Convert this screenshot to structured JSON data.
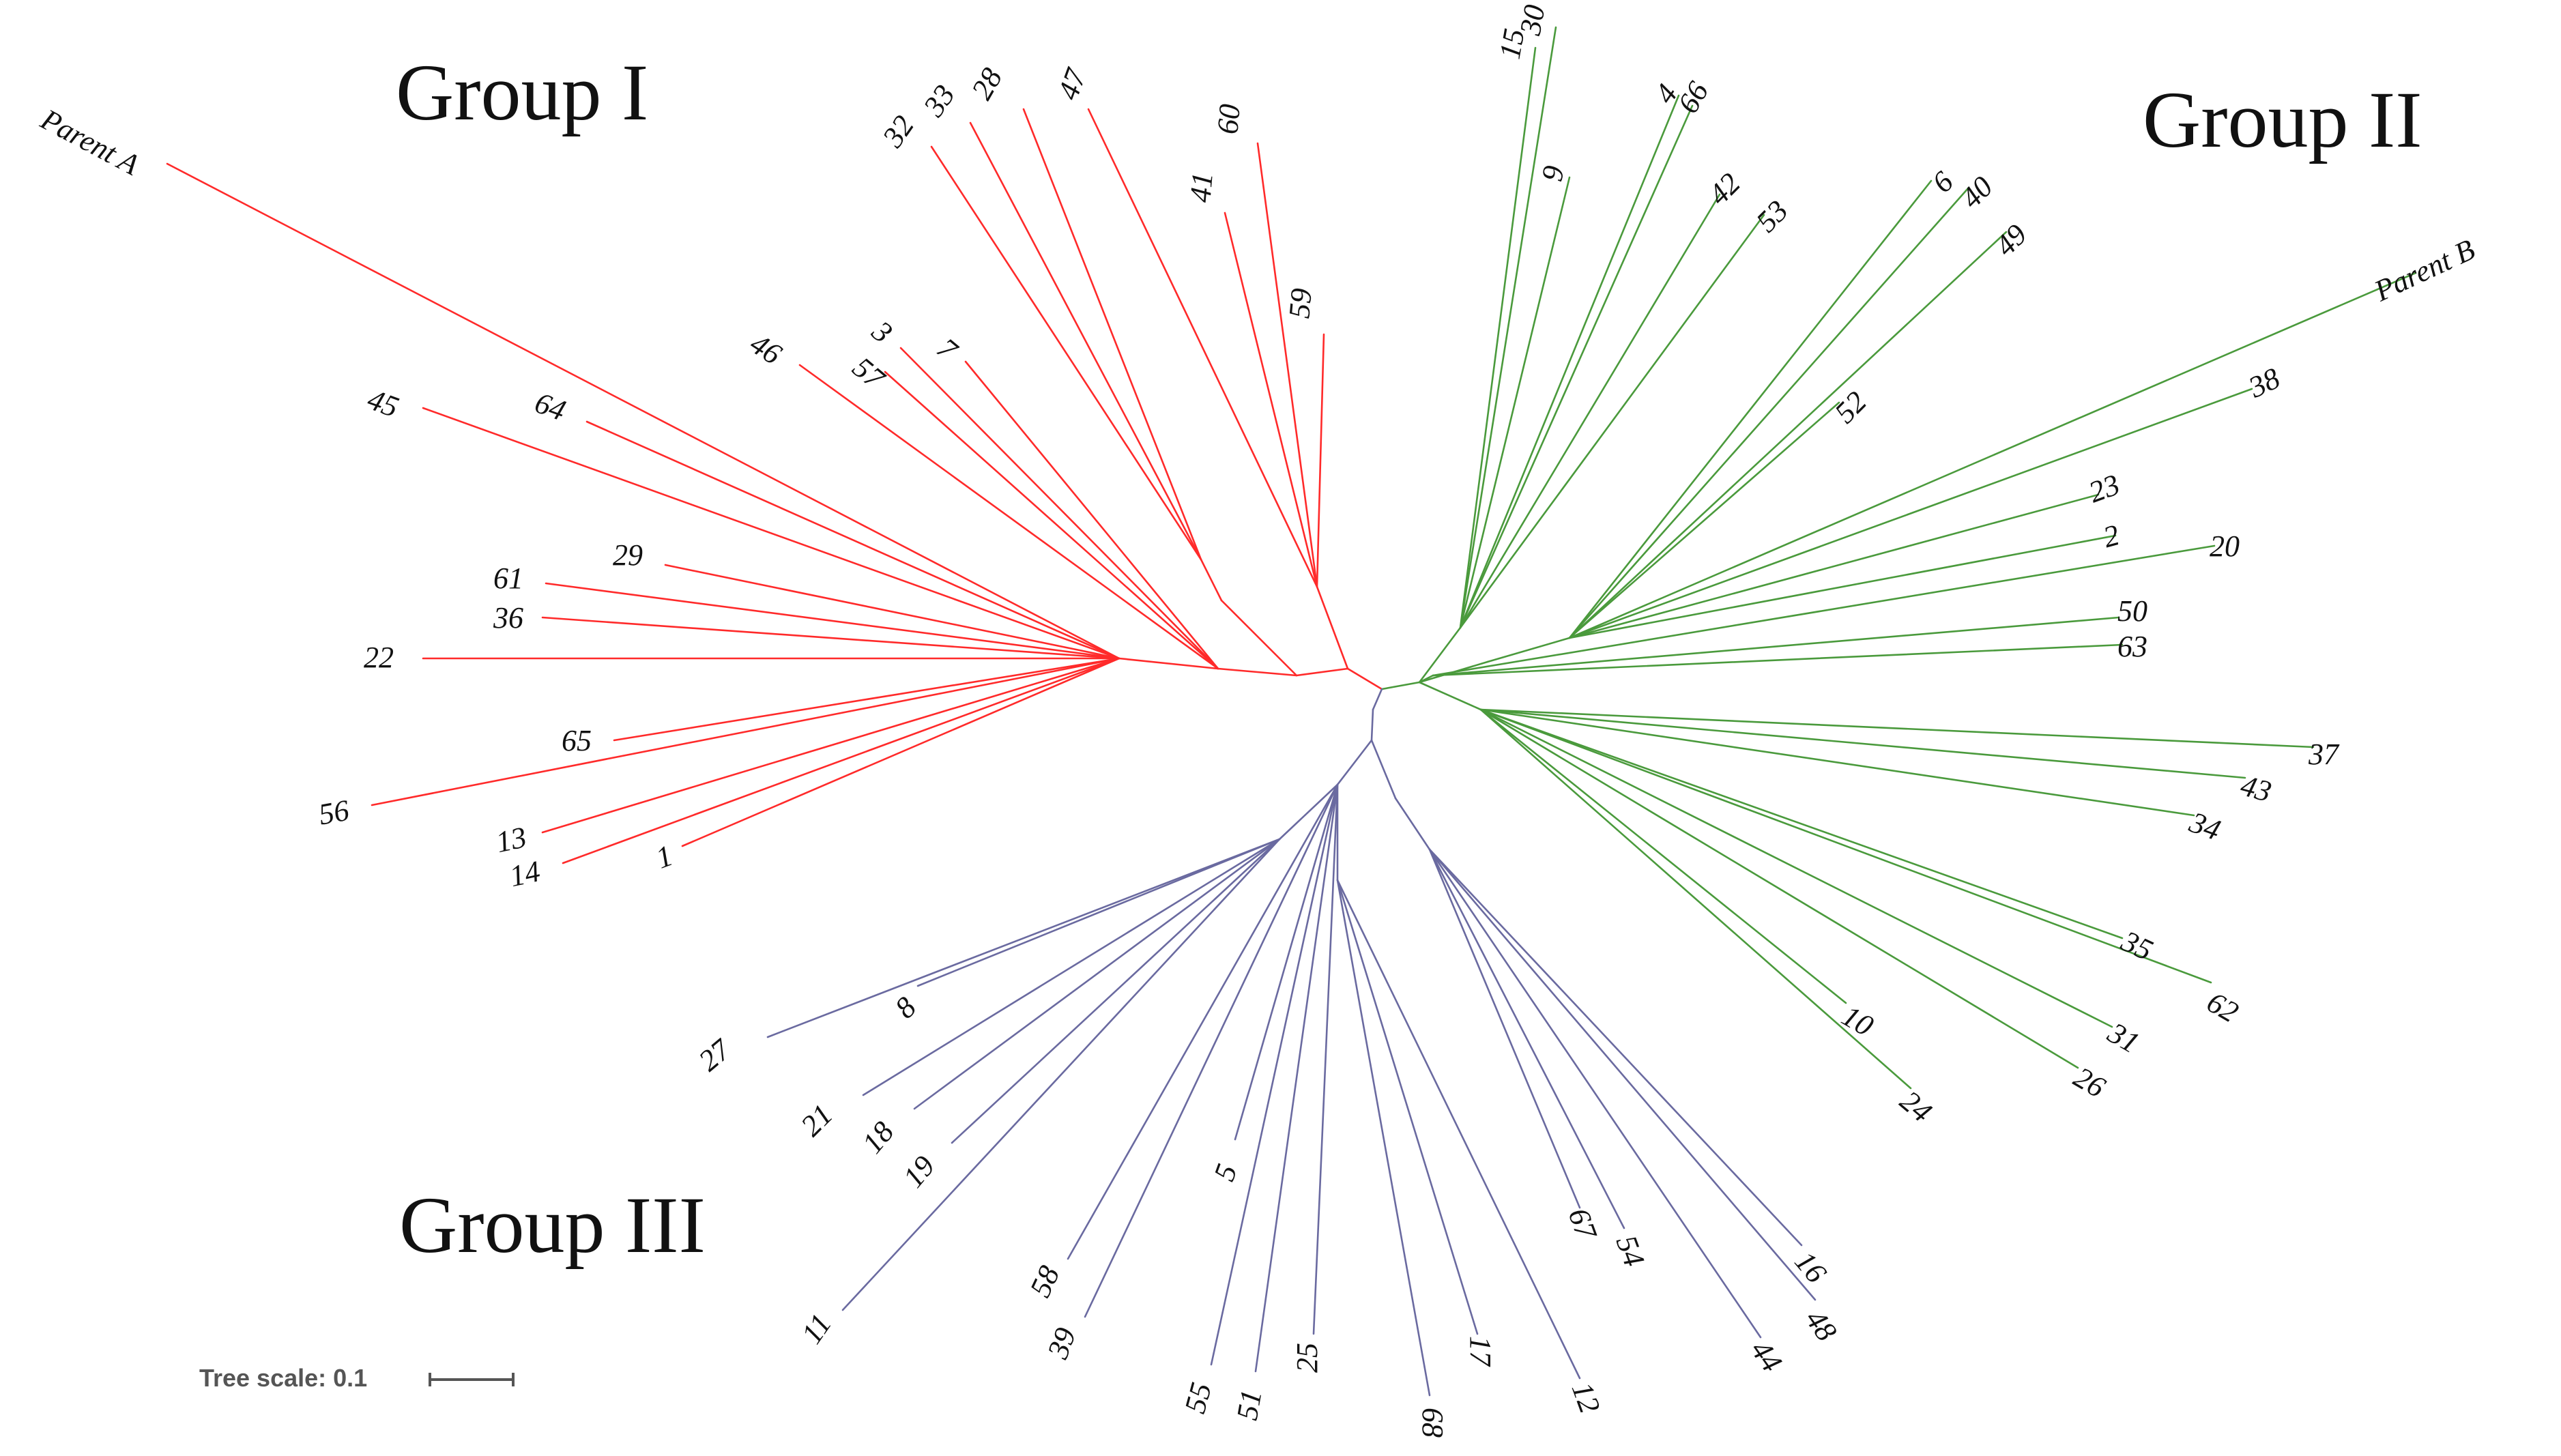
{
  "groups": [
    {
      "name": "Group I",
      "color": "#ff2a2a"
    },
    {
      "name": "Group II",
      "color": "#4a9a3c"
    },
    {
      "name": "Group III",
      "color": "#6a6aa0"
    }
  ],
  "scale": {
    "label": "Tree scale: 0.1"
  },
  "leaves": {
    "g1": [
      "Parent A",
      "45",
      "64",
      "46",
      "3",
      "57",
      "7",
      "32",
      "33",
      "28",
      "47",
      "41",
      "60",
      "59",
      "61",
      "29",
      "36",
      "22",
      "65",
      "56",
      "13",
      "14",
      "1"
    ],
    "g2": [
      "15",
      "30",
      "9",
      "4",
      "66",
      "42",
      "53",
      "6",
      "40",
      "49",
      "52",
      "Parent B",
      "38",
      "23",
      "2",
      "20",
      "50",
      "63",
      "37",
      "43",
      "34",
      "35",
      "62",
      "10",
      "31",
      "26",
      "24"
    ],
    "g3": [
      "27",
      "8",
      "21",
      "18",
      "19",
      "11",
      "58",
      "39",
      "5",
      "55",
      "51",
      "25",
      "68",
      "17",
      "12",
      "67",
      "54",
      "44",
      "16",
      "48"
    ]
  }
}
